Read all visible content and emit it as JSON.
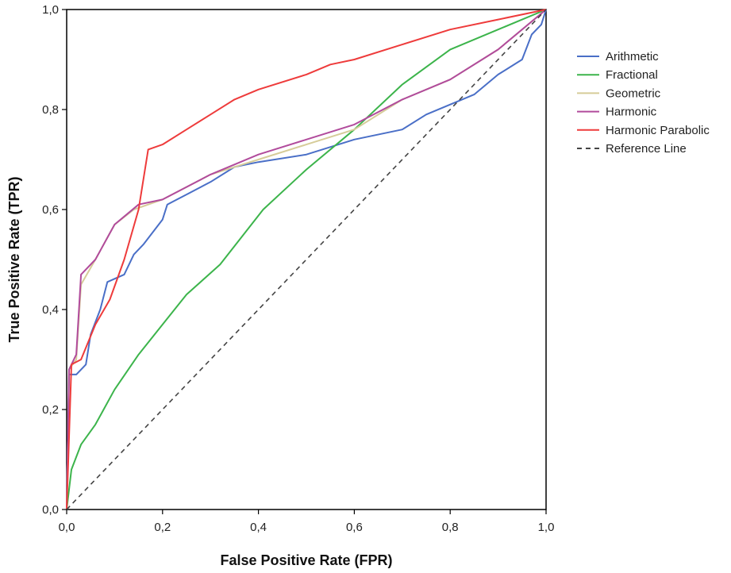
{
  "chart_data": {
    "type": "line",
    "title": "",
    "xlabel": "False Positive Rate (FPR)",
    "ylabel": "True Positive Rate (TPR)",
    "xlim": [
      0,
      1
    ],
    "ylim": [
      0,
      1
    ],
    "x_ticks": [
      "0,0",
      "0,2",
      "0,4",
      "0,6",
      "0,8",
      "1,0"
    ],
    "y_ticks": [
      "0,0",
      "0,2",
      "0,4",
      "0,6",
      "0,8",
      "1,0"
    ],
    "grid": false,
    "legend_position": "right",
    "series": [
      {
        "name": "Arithmetic",
        "color": "#4a6fc7",
        "dash": false,
        "points": [
          [
            0,
            0
          ],
          [
            0.005,
            0.27
          ],
          [
            0.02,
            0.27
          ],
          [
            0.04,
            0.29
          ],
          [
            0.05,
            0.35
          ],
          [
            0.07,
            0.4
          ],
          [
            0.085,
            0.455
          ],
          [
            0.12,
            0.47
          ],
          [
            0.14,
            0.51
          ],
          [
            0.16,
            0.53
          ],
          [
            0.2,
            0.58
          ],
          [
            0.21,
            0.61
          ],
          [
            0.25,
            0.63
          ],
          [
            0.3,
            0.655
          ],
          [
            0.35,
            0.685
          ],
          [
            0.4,
            0.695
          ],
          [
            0.5,
            0.71
          ],
          [
            0.6,
            0.74
          ],
          [
            0.7,
            0.76
          ],
          [
            0.75,
            0.79
          ],
          [
            0.8,
            0.81
          ],
          [
            0.85,
            0.83
          ],
          [
            0.9,
            0.87
          ],
          [
            0.95,
            0.9
          ],
          [
            0.97,
            0.95
          ],
          [
            0.99,
            0.97
          ],
          [
            1.0,
            1.0
          ]
        ]
      },
      {
        "name": "Fractional",
        "color": "#3cb44b",
        "dash": false,
        "points": [
          [
            0,
            0
          ],
          [
            0.01,
            0.08
          ],
          [
            0.03,
            0.13
          ],
          [
            0.06,
            0.17
          ],
          [
            0.1,
            0.24
          ],
          [
            0.15,
            0.31
          ],
          [
            0.2,
            0.37
          ],
          [
            0.25,
            0.43
          ],
          [
            0.32,
            0.49
          ],
          [
            0.41,
            0.6
          ],
          [
            0.5,
            0.68
          ],
          [
            0.6,
            0.76
          ],
          [
            0.7,
            0.85
          ],
          [
            0.8,
            0.92
          ],
          [
            0.9,
            0.96
          ],
          [
            1.0,
            1.0
          ]
        ]
      },
      {
        "name": "Geometric",
        "color": "#d6cc99",
        "dash": false,
        "points": [
          [
            0,
            0
          ],
          [
            0.005,
            0.28
          ],
          [
            0.02,
            0.3
          ],
          [
            0.03,
            0.45
          ],
          [
            0.06,
            0.5
          ],
          [
            0.1,
            0.57
          ],
          [
            0.14,
            0.6
          ],
          [
            0.2,
            0.62
          ],
          [
            0.3,
            0.67
          ],
          [
            0.4,
            0.7
          ],
          [
            0.5,
            0.73
          ],
          [
            0.6,
            0.76
          ],
          [
            0.7,
            0.82
          ],
          [
            0.8,
            0.86
          ],
          [
            0.9,
            0.92
          ],
          [
            1.0,
            1.0
          ]
        ]
      },
      {
        "name": "Harmonic",
        "color": "#b14b9c",
        "dash": false,
        "points": [
          [
            0,
            0
          ],
          [
            0.005,
            0.28
          ],
          [
            0.02,
            0.31
          ],
          [
            0.03,
            0.47
          ],
          [
            0.06,
            0.5
          ],
          [
            0.1,
            0.57
          ],
          [
            0.15,
            0.61
          ],
          [
            0.2,
            0.62
          ],
          [
            0.3,
            0.67
          ],
          [
            0.4,
            0.71
          ],
          [
            0.5,
            0.74
          ],
          [
            0.6,
            0.77
          ],
          [
            0.7,
            0.82
          ],
          [
            0.8,
            0.86
          ],
          [
            0.9,
            0.92
          ],
          [
            1.0,
            1.0
          ]
        ]
      },
      {
        "name": "Harmonic Parabolic",
        "color": "#ee3b3b",
        "dash": false,
        "points": [
          [
            0,
            0
          ],
          [
            0.01,
            0.29
          ],
          [
            0.03,
            0.3
          ],
          [
            0.06,
            0.37
          ],
          [
            0.09,
            0.42
          ],
          [
            0.12,
            0.5
          ],
          [
            0.15,
            0.6
          ],
          [
            0.17,
            0.72
          ],
          [
            0.2,
            0.73
          ],
          [
            0.25,
            0.76
          ],
          [
            0.3,
            0.79
          ],
          [
            0.35,
            0.82
          ],
          [
            0.4,
            0.84
          ],
          [
            0.5,
            0.87
          ],
          [
            0.55,
            0.89
          ],
          [
            0.6,
            0.9
          ],
          [
            0.7,
            0.93
          ],
          [
            0.8,
            0.96
          ],
          [
            0.9,
            0.98
          ],
          [
            1.0,
            1.0
          ]
        ]
      },
      {
        "name": "Reference Line",
        "color": "#444444",
        "dash": true,
        "points": [
          [
            0,
            0
          ],
          [
            1,
            1
          ]
        ]
      }
    ]
  }
}
